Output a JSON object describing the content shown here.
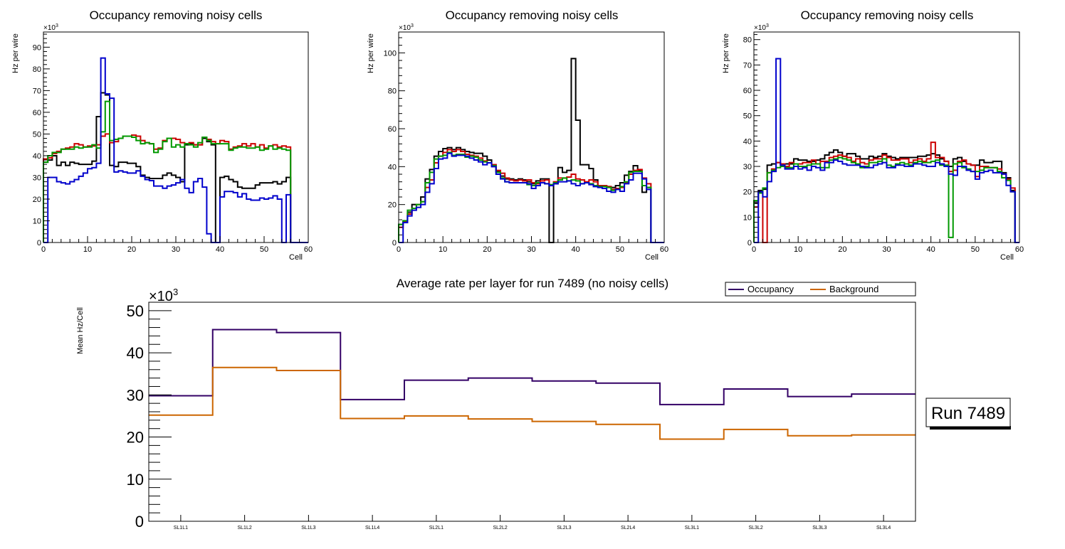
{
  "chart_data": [
    {
      "type": "histogram-step",
      "title": "Occupancy removing noisy cells",
      "xlabel": "Cell",
      "ylabel": "Hz per wire",
      "y_multiplier": "×10^3",
      "xlim": [
        0,
        60
      ],
      "ylim": [
        0,
        97
      ],
      "xticks": [
        0,
        10,
        20,
        30,
        40,
        50,
        60
      ],
      "yticks": [
        0,
        10,
        20,
        30,
        40,
        50,
        60,
        70,
        80,
        90
      ],
      "series": [
        {
          "name": "black",
          "color": "#000000",
          "values": [
            37,
            38,
            40,
            35.5,
            37,
            35.5,
            37,
            36.5,
            36,
            36,
            36,
            37.5,
            58,
            69,
            68,
            35.5,
            35,
            37,
            37,
            36.5,
            36.5,
            35,
            31,
            30,
            29.5,
            29.5,
            29.5,
            31,
            32,
            31,
            30,
            28,
            45,
            45.5,
            45,
            45,
            48,
            46.5,
            45,
            0,
            30,
            30.5,
            29,
            28,
            25.5,
            25,
            25,
            25,
            26.5,
            27.5,
            27.5,
            27.5,
            28,
            27,
            28,
            30,
            0,
            0,
            0,
            0
          ]
        },
        {
          "name": "red",
          "color": "#cc0000",
          "values": [
            38.5,
            39,
            41,
            42,
            43,
            43.5,
            44,
            45.5,
            45,
            44,
            44.5,
            44.5,
            45,
            49,
            50,
            46,
            46.5,
            48,
            49,
            49,
            49.5,
            49,
            47,
            46,
            45.5,
            43,
            43.5,
            47,
            48,
            48,
            47.5,
            46,
            45.5,
            46,
            45,
            45,
            48.5,
            47.5,
            46.5,
            45.5,
            47,
            46.5,
            43,
            44,
            44.5,
            45.5,
            44.5,
            45.5,
            44,
            45,
            43.5,
            44.5,
            45,
            44,
            44.5,
            44,
            0,
            0,
            0,
            0
          ]
        },
        {
          "name": "green",
          "color": "#009900",
          "values": [
            37,
            40,
            41.5,
            41.5,
            43,
            43,
            43,
            44,
            43.5,
            44,
            44,
            45,
            43.5,
            51,
            65,
            47,
            47.5,
            48,
            49,
            49,
            48.5,
            47,
            45.5,
            46,
            45.5,
            41.5,
            43,
            46.5,
            48,
            44,
            45,
            44,
            45.5,
            45,
            44,
            46,
            48.5,
            47,
            45.5,
            45.5,
            45.5,
            45.5,
            42.5,
            43.5,
            44,
            44,
            43.5,
            43.5,
            44,
            42.5,
            43,
            44.5,
            43,
            43.5,
            43,
            42.5,
            0,
            0,
            0,
            0
          ]
        },
        {
          "name": "blue",
          "color": "#0000cc",
          "values": [
            0,
            30,
            30,
            28,
            27.5,
            27,
            28,
            29,
            30.5,
            32,
            34,
            34.5,
            36.5,
            85,
            68.5,
            66.5,
            32.5,
            33,
            32.5,
            32,
            32,
            33,
            30.5,
            29,
            28.5,
            26,
            26,
            25,
            26,
            26.5,
            27.5,
            29,
            25,
            23,
            28,
            29.5,
            25.5,
            4,
            0,
            0,
            21,
            23.5,
            23.5,
            23,
            21,
            22.5,
            20,
            19.5,
            19.5,
            20.5,
            20,
            20.5,
            21.5,
            20,
            0,
            22,
            0,
            0,
            0,
            0
          ]
        }
      ]
    },
    {
      "type": "histogram-step",
      "title": "Occupancy removing noisy cells",
      "xlabel": "Cell",
      "ylabel": "Hz per wire",
      "y_multiplier": "×10^3",
      "xlim": [
        0,
        60
      ],
      "ylim": [
        0,
        111
      ],
      "xticks": [
        0,
        10,
        20,
        30,
        40,
        50,
        60
      ],
      "yticks": [
        0,
        20,
        40,
        60,
        80,
        100
      ],
      "series": [
        {
          "name": "black",
          "color": "#000000",
          "values": [
            9.5,
            11,
            16,
            20,
            20,
            24,
            33.5,
            38.5,
            45.5,
            48,
            49.5,
            50,
            49,
            50,
            49,
            48,
            47.5,
            47,
            47,
            45.5,
            43.5,
            41,
            37.5,
            35,
            33.5,
            33.5,
            33,
            33.5,
            33,
            32,
            31,
            32.5,
            33.5,
            33.5,
            0,
            31,
            39.5,
            37,
            38,
            97,
            64.5,
            41,
            41,
            39,
            33,
            30,
            30,
            29.5,
            29,
            30,
            31.5,
            35.5,
            37.5,
            40.5,
            38,
            26.5,
            29,
            0,
            0,
            0
          ]
        },
        {
          "name": "red",
          "color": "#cc0000",
          "values": [
            8,
            11,
            15,
            18,
            20,
            21.5,
            29,
            33,
            42,
            45.5,
            47.5,
            49,
            48,
            49,
            48,
            46.5,
            46,
            45.5,
            44.5,
            43,
            42,
            41,
            38,
            36.5,
            34,
            33,
            32.5,
            33,
            32.5,
            33,
            31.5,
            31,
            32.5,
            33,
            30,
            32,
            34,
            34,
            34.5,
            36,
            33.5,
            33,
            32,
            33,
            32,
            30,
            30,
            29.5,
            28,
            28.5,
            29,
            31.5,
            36,
            38,
            38.5,
            34,
            31,
            0,
            0,
            0
          ]
        },
        {
          "name": "green",
          "color": "#009900",
          "values": [
            9.5,
            11.5,
            17,
            18,
            20,
            21.5,
            31.5,
            37,
            44,
            45.5,
            46,
            47.5,
            46,
            46.5,
            46.5,
            45,
            45.5,
            45,
            43.5,
            42.5,
            42,
            40.5,
            37,
            34,
            32,
            31.5,
            31.5,
            31.5,
            31.5,
            30.5,
            30,
            31.5,
            31.5,
            31,
            30.5,
            31.5,
            33,
            34,
            32.5,
            33,
            32.5,
            31,
            31.5,
            31,
            30,
            29.5,
            29.5,
            29,
            27.5,
            28,
            29.5,
            32,
            37,
            37.5,
            37.5,
            30,
            29,
            0,
            0,
            0
          ]
        },
        {
          "name": "blue",
          "color": "#0000cc",
          "values": [
            0,
            10.5,
            14,
            17,
            18.5,
            20,
            26.5,
            31,
            39,
            44,
            44.5,
            47,
            45.5,
            46,
            46,
            45.5,
            44.5,
            43.5,
            42.5,
            41,
            42,
            40,
            36,
            33.5,
            32,
            31.5,
            31.5,
            31.5,
            31.5,
            31,
            28.5,
            30,
            31.5,
            31,
            30,
            31,
            32,
            32,
            32.5,
            31,
            30,
            31,
            31.5,
            30.5,
            29.5,
            29,
            28.5,
            27,
            26.5,
            28,
            27,
            31,
            33,
            36.5,
            36.5,
            33.5,
            28,
            0,
            0,
            0
          ]
        }
      ]
    },
    {
      "type": "histogram-step",
      "title": "Occupancy removing noisy cells",
      "xlabel": "Cell",
      "ylabel": "Hz per wire",
      "y_multiplier": "×10^3",
      "xlim": [
        0,
        60
      ],
      "ylim": [
        0,
        83
      ],
      "xticks": [
        0,
        10,
        20,
        30,
        40,
        50,
        60
      ],
      "yticks": [
        0,
        10,
        20,
        30,
        40,
        50,
        60,
        70,
        80
      ],
      "series": [
        {
          "name": "black",
          "color": "#000000",
          "values": [
            15.5,
            20.5,
            21,
            30.5,
            31,
            31.5,
            31,
            31,
            31,
            33,
            32.5,
            32.5,
            32,
            32,
            32.5,
            33,
            34.5,
            35.5,
            36.5,
            35.5,
            34,
            35,
            35,
            34,
            33,
            33,
            34,
            33.5,
            34,
            35,
            34,
            33.5,
            33,
            33.5,
            33.5,
            33.5,
            33.5,
            34,
            34,
            34.5,
            35,
            34.5,
            33,
            32,
            30,
            33,
            33.5,
            32,
            31,
            30.5,
            30.5,
            32.5,
            31.5,
            31.5,
            32,
            32,
            27.5,
            25.5,
            20.5,
            0
          ]
        },
        {
          "name": "red",
          "color": "#cc0000",
          "values": [
            14,
            20,
            0,
            27.5,
            29,
            31.5,
            31,
            30,
            31.5,
            31,
            31,
            31.5,
            31.5,
            32.5,
            31,
            32,
            32,
            33.5,
            34,
            34.5,
            34,
            33.5,
            32,
            33,
            31.5,
            31,
            32.5,
            33,
            33,
            34.5,
            33.5,
            32.5,
            32.5,
            33,
            33,
            31.5,
            32.5,
            33,
            32,
            33,
            39.5,
            33.5,
            33.5,
            32,
            28,
            28.5,
            32,
            32.5,
            31,
            30.5,
            26,
            30,
            30,
            29.5,
            29.5,
            29,
            27,
            25,
            21.5,
            0
          ]
        },
        {
          "name": "green",
          "color": "#009900",
          "values": [
            16.5,
            19.5,
            21.5,
            27.5,
            28.5,
            29.5,
            30,
            29.5,
            29.5,
            31,
            30,
            30,
            30.5,
            31,
            31,
            29.5,
            29.5,
            32.5,
            33,
            33.5,
            33,
            32.5,
            31.5,
            31,
            29.5,
            30,
            31.5,
            31.5,
            32,
            33,
            30.5,
            30,
            31,
            31.5,
            31,
            30.5,
            31.5,
            32,
            31.5,
            31.5,
            32,
            32.5,
            30.5,
            30.5,
            2,
            31,
            31.5,
            29.5,
            29,
            28,
            28,
            28.5,
            29.5,
            29.5,
            29.5,
            28,
            25.5,
            24.5,
            20,
            0
          ]
        },
        {
          "name": "blue",
          "color": "#0000cc",
          "values": [
            0,
            20,
            18,
            24,
            28,
            72.5,
            30.5,
            29,
            29,
            30,
            29,
            29.5,
            28.5,
            30,
            29.5,
            28.5,
            31.5,
            31.5,
            32.5,
            32,
            31,
            30.5,
            30.5,
            30.5,
            30,
            29.5,
            29.5,
            30.5,
            31,
            31.5,
            29.5,
            29.5,
            30.5,
            30.5,
            30,
            30,
            31,
            31,
            30.5,
            30,
            30,
            31.5,
            31,
            30,
            27,
            26.5,
            30,
            30,
            28.5,
            28,
            25,
            27.5,
            28,
            28.5,
            27.5,
            27.5,
            27,
            22.5,
            20,
            0
          ]
        }
      ]
    },
    {
      "type": "histogram-step",
      "title": "Average rate per layer for run 7489 (no noisy cells)",
      "xlabel": "",
      "ylabel": "Mean Hz/Cell",
      "y_multiplier": "×10^3",
      "ylim": [
        0,
        52
      ],
      "yticks": [
        0,
        10,
        20,
        30,
        40,
        50
      ],
      "categories": [
        "SL1L1",
        "SL1L2",
        "SL1L3",
        "SL1L4",
        "SL2L1",
        "SL2L2",
        "SL2L3",
        "SL2L4",
        "SL3L1",
        "SL3L2",
        "SL3L3",
        "SL3L4"
      ],
      "legend_position": "top-right",
      "series": [
        {
          "name": "Occupancy",
          "color": "#330066",
          "values": [
            29.8,
            45.5,
            44.8,
            28.9,
            33.5,
            34.0,
            33.3,
            32.8,
            27.7,
            31.4,
            29.6,
            30.2
          ]
        },
        {
          "name": "Background",
          "color": "#cc6600",
          "values": [
            25.2,
            36.5,
            35.8,
            24.4,
            25.0,
            24.3,
            23.7,
            23.0,
            19.5,
            21.8,
            20.3,
            20.5
          ]
        }
      ]
    }
  ],
  "run_label": "Run 7489"
}
